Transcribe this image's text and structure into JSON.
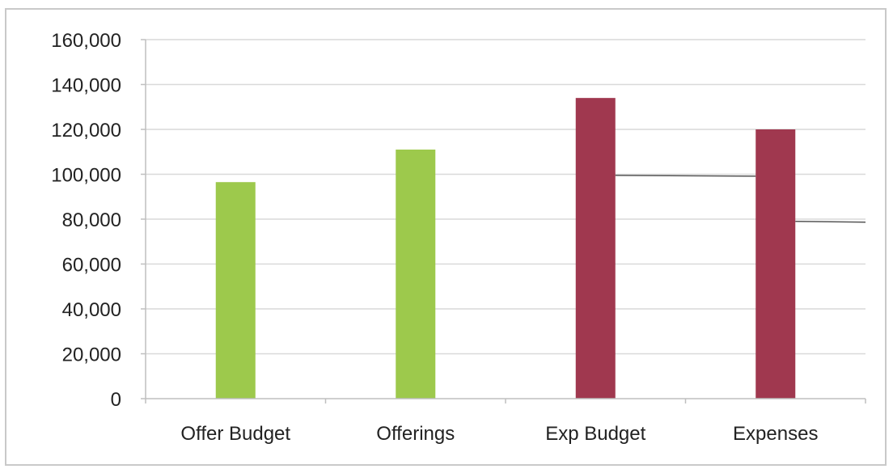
{
  "chart_data": {
    "type": "bar",
    "title": "",
    "xlabel": "",
    "ylabel": "",
    "categories": [
      "Offer Budget",
      "Offerings",
      "Exp Budget",
      "Expenses"
    ],
    "values": [
      96500,
      111000,
      134000,
      120000
    ],
    "bar_colors": [
      "#9dc94c",
      "#9dc94c",
      "#a0384f",
      "#a0384f"
    ],
    "ylim": [
      0,
      160000
    ],
    "yticks": [
      0,
      20000,
      40000,
      60000,
      80000,
      100000,
      120000,
      140000,
      160000
    ],
    "ytick_labels": [
      "0",
      "20,000",
      "40,000",
      "60,000",
      "80,000",
      "100,000",
      "120,000",
      "140,000",
      "160,000"
    ],
    "grid": true,
    "legend": "none",
    "annotations": [
      {
        "type": "reference-line",
        "from_category": "Exp Budget",
        "to_category": "Expenses",
        "value": 99500
      },
      {
        "type": "reference-line",
        "from_category": "Expenses",
        "to_category": "end",
        "value": 79000
      }
    ]
  },
  "colors": {
    "grid": "#d9d9d9",
    "axis": "#bfbfbf",
    "reference_line": "#555555",
    "frame": "#c9c9c9"
  }
}
